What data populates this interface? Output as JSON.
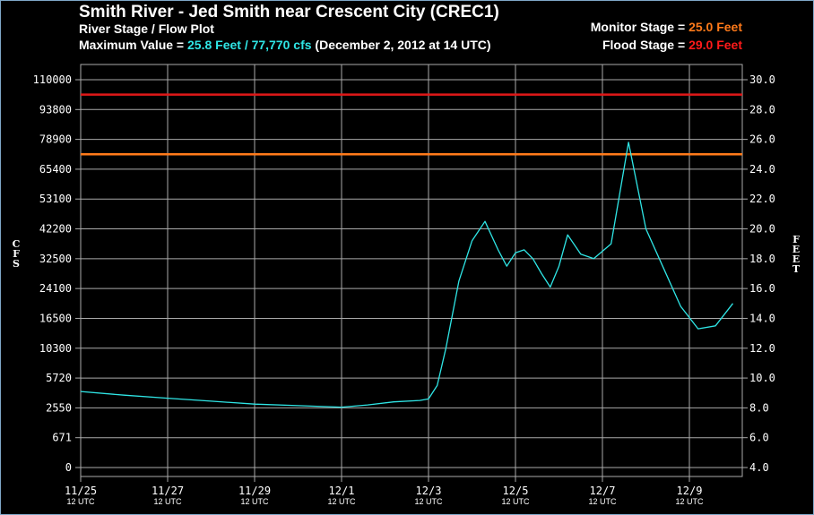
{
  "header": {
    "title": "Smith River - Jed Smith near Crescent City (CREC1)",
    "subtitle": "River Stage / Flow Plot",
    "max_label": "Maximum Value = ",
    "max_value": "25.8 Feet / 77,770 cfs",
    "max_date": " (December 2, 2012 at 14 UTC)",
    "monitor_label": "Monitor Stage = ",
    "monitor_value": "25.0 Feet",
    "flood_label": "Flood Stage = ",
    "flood_value": "29.0 Feet"
  },
  "colors": {
    "background": "#000000",
    "grid": "#aaaaaa",
    "series": "#2fe6e6",
    "monitor": "#ff7a1a",
    "flood": "#e01818",
    "text": "#ffffff"
  },
  "chart_data": {
    "type": "line",
    "title": "River Stage / Flow Plot",
    "xlabel": "",
    "ylabel_left": "CFS",
    "ylabel_right": "FEET",
    "ylim_right": [
      4.0,
      30.0
    ],
    "y_left_ticks": [
      {
        "stage": 4.0,
        "label": "0"
      },
      {
        "stage": 6.0,
        "label": "671"
      },
      {
        "stage": 8.0,
        "label": "2550"
      },
      {
        "stage": 10.0,
        "label": "5720"
      },
      {
        "stage": 12.0,
        "label": "10300"
      },
      {
        "stage": 14.0,
        "label": "16500"
      },
      {
        "stage": 16.0,
        "label": "24100"
      },
      {
        "stage": 18.0,
        "label": "32500"
      },
      {
        "stage": 20.0,
        "label": "42200"
      },
      {
        "stage": 22.0,
        "label": "53100"
      },
      {
        "stage": 24.0,
        "label": "65400"
      },
      {
        "stage": 26.0,
        "label": "78900"
      },
      {
        "stage": 28.0,
        "label": "93800"
      },
      {
        "stage": 30.0,
        "label": "110000"
      }
    ],
    "y_right_ticks": [
      "4.0",
      "6.0",
      "8.0",
      "10.0",
      "12.0",
      "14.0",
      "16.0",
      "18.0",
      "20.0",
      "22.0",
      "24.0",
      "26.0",
      "28.0",
      "30.0"
    ],
    "x_ticks": [
      {
        "date": "11/25",
        "sub": "12 UTC"
      },
      {
        "date": "11/27",
        "sub": "12 UTC"
      },
      {
        "date": "11/29",
        "sub": "12 UTC"
      },
      {
        "date": "12/1",
        "sub": "12 UTC"
      },
      {
        "date": "12/3",
        "sub": "12 UTC"
      },
      {
        "date": "12/5",
        "sub": "12 UTC"
      },
      {
        "date": "12/7",
        "sub": "12 UTC"
      },
      {
        "date": "12/9",
        "sub": "12 UTC"
      }
    ],
    "xlim_days": [
      0,
      7.6
    ],
    "grid": true,
    "reference_lines": [
      {
        "name": "Monitor Stage",
        "stage": 25.0
      },
      {
        "name": "Flood Stage",
        "stage": 29.0
      }
    ],
    "series": [
      {
        "x_days_since_11_25_12utc": [
          0,
          0.5,
          1.0,
          1.5,
          2.0,
          2.5,
          3.0,
          3.3,
          3.6,
          3.9,
          4.0,
          4.1,
          4.2,
          4.35,
          4.5,
          4.65,
          4.8,
          4.9,
          5.0,
          5.1,
          5.2,
          5.3,
          5.4,
          5.5,
          5.6,
          5.75,
          5.9,
          6.1,
          6.3,
          6.5,
          6.7,
          6.9,
          7.1,
          7.3,
          7.5
        ],
        "stage_ft": [
          9.1,
          8.85,
          8.65,
          8.45,
          8.25,
          8.15,
          8.05,
          8.2,
          8.4,
          8.5,
          8.6,
          9.5,
          12.0,
          16.5,
          19.2,
          20.5,
          18.6,
          17.5,
          18.4,
          18.6,
          18.0,
          17.0,
          16.1,
          17.5,
          19.6,
          18.3,
          18.0,
          19.0,
          25.8,
          20.0,
          17.4,
          14.8,
          13.3,
          13.5,
          15.0
        ]
      }
    ]
  }
}
